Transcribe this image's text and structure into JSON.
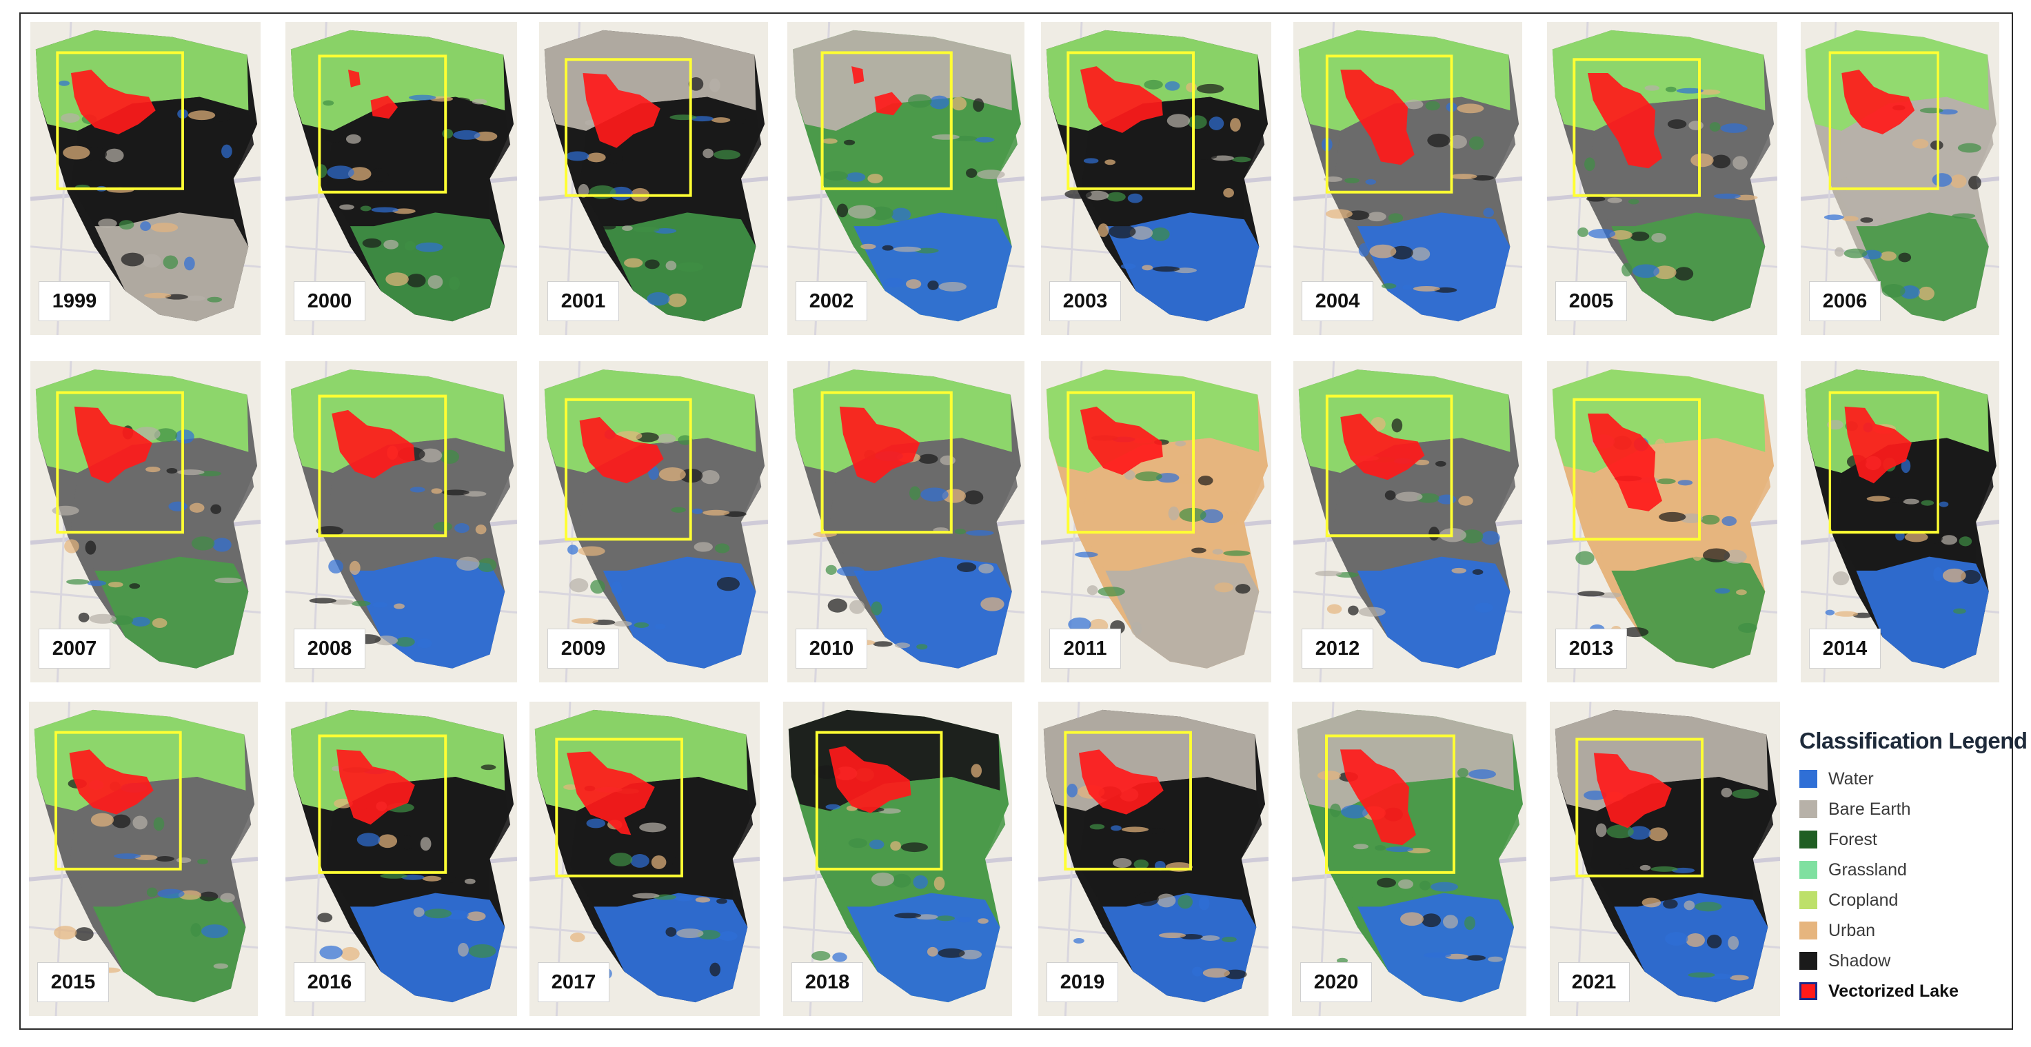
{
  "panels": [
    {
      "year": "1999",
      "cover": [
        "#8fdc6b",
        "#1a1a1a",
        "#b7b1a8"
      ],
      "box_variant": 0,
      "lake_variant": 0
    },
    {
      "year": "2000",
      "cover": [
        "#8fdc6b",
        "#1a1a1a",
        "#3f8f45"
      ],
      "box_variant": 1,
      "lake_variant": 5
    },
    {
      "year": "2001",
      "cover": [
        "#b7b1a8",
        "#1a1a1a",
        "#3f8f45"
      ],
      "box_variant": 2,
      "lake_variant": 1
    },
    {
      "year": "2002",
      "cover": [
        "#b7b1a8",
        "#4b9a4a",
        "#2f6fd6"
      ],
      "box_variant": 3,
      "lake_variant": 5
    },
    {
      "year": "2003",
      "cover": [
        "#8fdc6b",
        "#1a1a1a",
        "#2f6fd6"
      ],
      "box_variant": 0,
      "lake_variant": 2
    },
    {
      "year": "2004",
      "cover": [
        "#8fdc6b",
        "#6b6b6b",
        "#2f6fd6"
      ],
      "box_variant": 1,
      "lake_variant": 3
    },
    {
      "year": "2005",
      "cover": [
        "#8fdc6b",
        "#6b6b6b",
        "#4b9a4a"
      ],
      "box_variant": 2,
      "lake_variant": 3
    },
    {
      "year": "2006",
      "cover": [
        "#8fdc6b",
        "#b7b1a8",
        "#4b9a4a"
      ],
      "box_variant": 3,
      "lake_variant": 0
    },
    {
      "year": "2007",
      "cover": [
        "#8fdc6b",
        "#6b6b6b",
        "#4b9a4a"
      ],
      "box_variant": 0,
      "lake_variant": 1
    },
    {
      "year": "2008",
      "cover": [
        "#8fdc6b",
        "#6b6b6b",
        "#2f6fd6"
      ],
      "box_variant": 1,
      "lake_variant": 2
    },
    {
      "year": "2009",
      "cover": [
        "#8fdc6b",
        "#6b6b6b",
        "#2f6fd6"
      ],
      "box_variant": 2,
      "lake_variant": 0
    },
    {
      "year": "2010",
      "cover": [
        "#8fdc6b",
        "#6b6b6b",
        "#2f6fd6"
      ],
      "box_variant": 3,
      "lake_variant": 1
    },
    {
      "year": "2011",
      "cover": [
        "#8fdc6b",
        "#e6b57e",
        "#b7b1a8"
      ],
      "box_variant": 0,
      "lake_variant": 2
    },
    {
      "year": "2012",
      "cover": [
        "#8fdc6b",
        "#6b6b6b",
        "#2f6fd6"
      ],
      "box_variant": 1,
      "lake_variant": 0
    },
    {
      "year": "2013",
      "cover": [
        "#8fdc6b",
        "#e6b57e",
        "#4b9a4a"
      ],
      "box_variant": 2,
      "lake_variant": 3
    },
    {
      "year": "2014",
      "cover": [
        "#8fdc6b",
        "#1a1a1a",
        "#2f6fd6"
      ],
      "box_variant": 3,
      "lake_variant": 1
    },
    {
      "year": "2015",
      "cover": [
        "#8fdc6b",
        "#6b6b6b",
        "#4b9a4a"
      ],
      "box_variant": 0,
      "lake_variant": 0
    },
    {
      "year": "2016",
      "cover": [
        "#8fdc6b",
        "#1a1a1a",
        "#2f6fd6"
      ],
      "box_variant": 1,
      "lake_variant": 1
    },
    {
      "year": "2017",
      "cover": [
        "#8fdc6b",
        "#1a1a1a",
        "#2f6fd6"
      ],
      "box_variant": 2,
      "lake_variant": 4
    },
    {
      "year": "2018",
      "cover": [
        "#1a1a1a",
        "#4b9a4a",
        "#2f6fd6"
      ],
      "box_variant": 3,
      "lake_variant": 2
    },
    {
      "year": "2019",
      "cover": [
        "#b7b1a8",
        "#1a1a1a",
        "#2f6fd6"
      ],
      "box_variant": 0,
      "lake_variant": 0
    },
    {
      "year": "2020",
      "cover": [
        "#b7b1a8",
        "#4b9a4a",
        "#2f6fd6"
      ],
      "box_variant": 1,
      "lake_variant": 3
    },
    {
      "year": "2021",
      "cover": [
        "#b7b1a8",
        "#1a1a1a",
        "#2f6fd6"
      ],
      "box_variant": 2,
      "lake_variant": 1
    }
  ],
  "legend": {
    "title": "Classification Legend",
    "items": [
      {
        "label": "Water",
        "color": "#2f6fd6"
      },
      {
        "label": "Bare Earth",
        "color": "#b7b1a8"
      },
      {
        "label": "Forest",
        "color": "#1f5e23"
      },
      {
        "label": "Grassland",
        "color": "#7fe0a0"
      },
      {
        "label": "Cropland",
        "color": "#bde06a"
      },
      {
        "label": "Urban",
        "color": "#e6b57e"
      },
      {
        "label": "Shadow",
        "color": "#1a1a1a"
      },
      {
        "label": "Vectorized Lake",
        "color": "#ff1a1a",
        "border": "#1a2a8a",
        "bold": true
      }
    ]
  },
  "lake_color": "#ff1a1a",
  "box_color": "#ffff33"
}
